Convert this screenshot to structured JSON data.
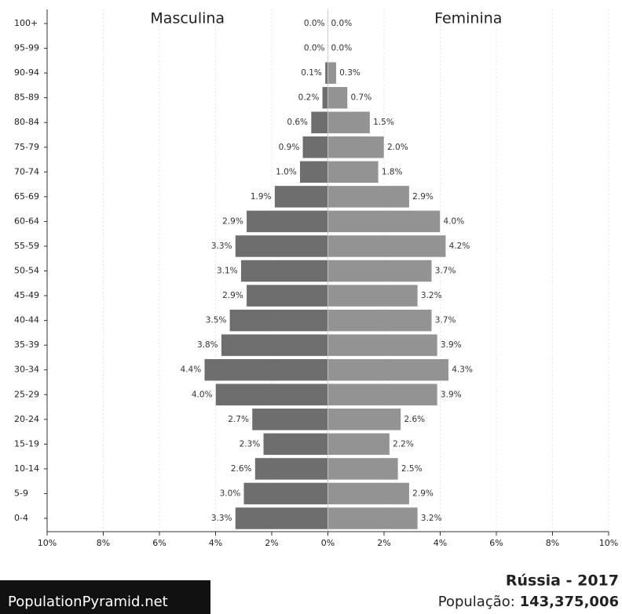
{
  "chart_data": {
    "type": "pyramid",
    "categories": [
      "100+",
      "95-99",
      "90-94",
      "85-89",
      "80-84",
      "75-79",
      "70-74",
      "65-69",
      "60-64",
      "55-59",
      "50-54",
      "45-49",
      "40-44",
      "35-39",
      "30-34",
      "25-29",
      "20-24",
      "15-19",
      "10-14",
      "5-9",
      "0-4"
    ],
    "series": [
      {
        "name": "Masculina",
        "color": "#6e6e6e",
        "side": "left",
        "values": [
          0.0,
          0.0,
          0.1,
          0.2,
          0.6,
          0.9,
          1.0,
          1.9,
          2.9,
          3.3,
          3.1,
          2.9,
          3.5,
          3.8,
          4.4,
          4.0,
          2.7,
          2.3,
          2.6,
          3.0,
          3.3
        ],
        "value_labels": [
          "0.0%",
          "0.0%",
          "0.1%",
          "0.2%",
          "0.6%",
          "0.9%",
          "1.0%",
          "1.9%",
          "2.9%",
          "3.3%",
          "3.1%",
          "2.9%",
          "3.5%",
          "3.8%",
          "4.4%",
          "4.0%",
          "2.7%",
          "2.3%",
          "2.6%",
          "3.0%",
          "3.3%"
        ]
      },
      {
        "name": "Feminina",
        "color": "#939393",
        "side": "right",
        "values": [
          0.0,
          0.0,
          0.3,
          0.7,
          1.5,
          2.0,
          1.8,
          2.9,
          4.0,
          4.2,
          3.7,
          3.2,
          3.7,
          3.9,
          4.3,
          3.9,
          2.6,
          2.2,
          2.5,
          2.9,
          3.2
        ],
        "value_labels": [
          "0.0%",
          "0.0%",
          "0.3%",
          "0.7%",
          "1.5%",
          "2.0%",
          "1.8%",
          "2.9%",
          "4.0%",
          "4.2%",
          "3.7%",
          "3.2%",
          "3.7%",
          "3.9%",
          "4.3%",
          "3.9%",
          "2.6%",
          "2.2%",
          "2.5%",
          "2.9%",
          "3.2%"
        ]
      }
    ],
    "xlim": [
      -10,
      10
    ],
    "xticks": [
      {
        "value": -10,
        "label": "10%"
      },
      {
        "value": -8,
        "label": "8%"
      },
      {
        "value": -6,
        "label": "6%"
      },
      {
        "value": -4,
        "label": "4%"
      },
      {
        "value": -2,
        "label": "2%"
      },
      {
        "value": 0,
        "label": "0%"
      },
      {
        "value": 2,
        "label": "2%"
      },
      {
        "value": 4,
        "label": "4%"
      },
      {
        "value": 6,
        "label": "6%"
      },
      {
        "value": 8,
        "label": "8%"
      },
      {
        "value": 10,
        "label": "10%"
      }
    ],
    "grid": true,
    "caption": "Rússia - 2017",
    "population_label": "População:",
    "population": "143,375,006",
    "source": "PopulationPyramid.net"
  }
}
